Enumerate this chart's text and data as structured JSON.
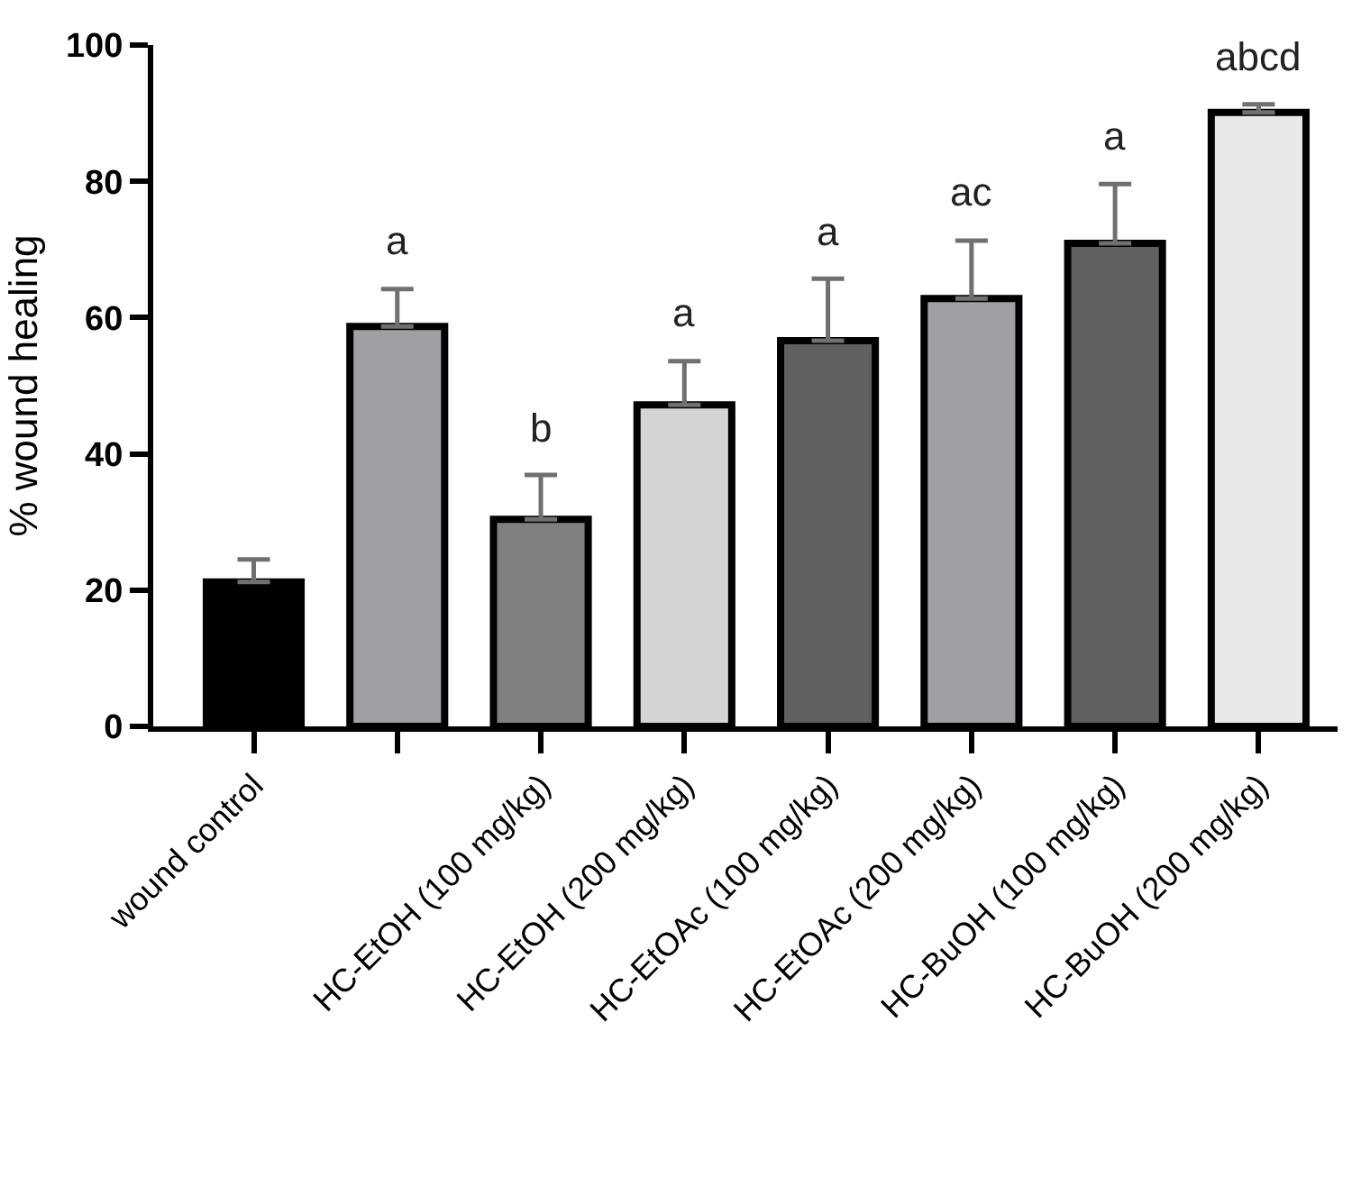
{
  "chart_data": {
    "type": "bar",
    "ylabel": "% wound healing",
    "categories": [
      "wound control",
      null,
      "HC-EtOH (100 mg/kg)",
      "HC-EtOH (200 mg/kg)",
      "HC-EtOAc (100 mg/kg)",
      "HC-EtOAc (200 mg/kg)",
      "HC-BuOH (100 mg/kg)",
      "HC-BuOH (200 mg/kg)"
    ],
    "values": [
      21.2,
      58.7,
      30.4,
      47.2,
      56.6,
      62.8,
      70.9,
      90.1
    ],
    "colors": [
      "#000000",
      "#a0a0a4",
      "#808080",
      "#d4d4d4",
      "#606060",
      "#a0a0a4",
      "#606060",
      "#e8e8e8"
    ],
    "errors": [
      [
        21.2,
        24.5
      ],
      [
        58.7,
        64.2
      ],
      [
        30.4,
        36.9
      ],
      [
        47.2,
        53.6
      ],
      [
        56.6,
        65.7
      ],
      [
        62.8,
        71.3
      ],
      [
        70.9,
        79.6
      ],
      [
        90.1,
        91.3
      ]
    ],
    "value_labels": [
      null,
      "a",
      "b",
      "a",
      "a",
      "ac",
      "a",
      "abcd"
    ],
    "ylim": [
      0,
      100
    ],
    "yticks": [
      0,
      20,
      40,
      60,
      80,
      100
    ]
  }
}
